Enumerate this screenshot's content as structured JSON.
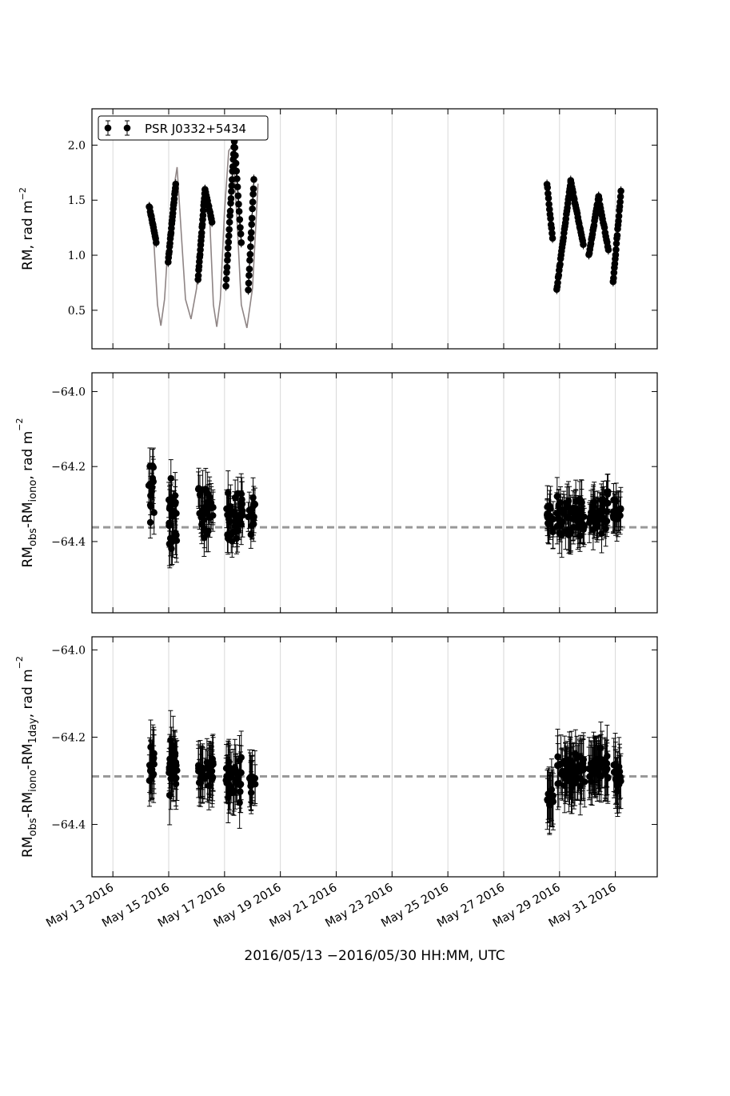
{
  "chart_data": [
    {
      "type": "scatter",
      "panel": "top",
      "ylabel": "RM, rad m",
      "ylabel_sup": "−2",
      "ylim": [
        0.15,
        2.33
      ],
      "yticks": [
        0.5,
        1.0,
        1.5,
        2.0
      ],
      "ytick_labels": [
        "0.5",
        "1.0",
        "1.5",
        "2.0"
      ],
      "grid": "vertical",
      "legend": {
        "label": "PSR J0332+5434",
        "position": "top-left"
      },
      "model_line": {
        "name": "ionospheric model",
        "color": "#8f8585",
        "x": [
          14.3,
          14.45,
          14.6,
          14.72,
          14.85,
          15.0,
          15.15,
          15.3,
          15.45,
          15.6,
          15.8,
          16.0,
          16.15,
          16.3,
          16.45,
          16.6,
          16.72,
          16.85,
          17.0,
          17.15,
          17.3,
          17.45,
          17.6,
          17.8,
          18.0,
          18.2
        ],
        "y": [
          1.42,
          1.2,
          0.55,
          0.36,
          0.6,
          1.2,
          1.55,
          1.8,
          1.2,
          0.6,
          0.42,
          0.7,
          1.3,
          1.6,
          1.45,
          0.55,
          0.35,
          0.6,
          1.4,
          1.95,
          2.0,
          1.3,
          0.55,
          0.34,
          0.7,
          1.65
        ]
      },
      "segments": [
        {
          "x0": 14.3,
          "x1": 14.55,
          "y0": 1.45,
          "y1": 1.12,
          "n": 14
        },
        {
          "x0": 14.98,
          "x1": 15.25,
          "y0": 0.94,
          "y1": 1.65,
          "n": 22
        },
        {
          "x0": 16.05,
          "x1": 16.3,
          "y0": 0.78,
          "y1": 1.6,
          "n": 22
        },
        {
          "x0": 16.3,
          "x1": 16.55,
          "y0": 1.6,
          "y1": 1.3,
          "n": 12
        },
        {
          "x0": 17.05,
          "x1": 17.35,
          "y0": 0.72,
          "y1": 2.04,
          "n": 24
        },
        {
          "x0": 17.35,
          "x1": 17.6,
          "y0": 2.04,
          "y1": 1.12,
          "n": 14
        },
        {
          "x0": 17.85,
          "x1": 18.05,
          "y0": 0.68,
          "y1": 1.68,
          "n": 16
        },
        {
          "x0": 28.55,
          "x1": 28.75,
          "y0": 1.65,
          "y1": 1.15,
          "n": 12
        },
        {
          "x0": 28.9,
          "x1": 29.4,
          "y0": 0.69,
          "y1": 1.67,
          "n": 30
        },
        {
          "x0": 29.4,
          "x1": 29.85,
          "y0": 1.67,
          "y1": 1.1,
          "n": 22
        },
        {
          "x0": 30.05,
          "x1": 30.4,
          "y0": 1.0,
          "y1": 1.53,
          "n": 20
        },
        {
          "x0": 30.4,
          "x1": 30.75,
          "y0": 1.53,
          "y1": 1.05,
          "n": 16
        },
        {
          "x0": 30.92,
          "x1": 31.2,
          "y0": 0.75,
          "y1": 1.58,
          "n": 20
        }
      ]
    },
    {
      "type": "scatter",
      "panel": "middle",
      "ylabel": "RM",
      "ylabel_parts": [
        "obs",
        "-RM",
        "iono",
        ", rad m",
        "−2"
      ],
      "ylim": [
        -64.59,
        -63.95
      ],
      "yticks": [
        -64.0,
        -64.2,
        -64.4
      ],
      "ytick_labels": [
        "−64.0",
        "−64.2",
        "−64.4"
      ],
      "mean_line": -64.362,
      "grid": "vertical",
      "clusters": [
        {
          "x0": 14.28,
          "x1": 14.48,
          "center": -64.27,
          "spread": 0.11,
          "err": 0.05,
          "n": 16
        },
        {
          "x0": 15.0,
          "x1": 15.3,
          "center": -64.35,
          "spread": 0.14,
          "err": 0.055,
          "n": 26
        },
        {
          "x0": 16.05,
          "x1": 16.6,
          "center": -64.32,
          "spread": 0.09,
          "err": 0.05,
          "n": 36
        },
        {
          "x0": 17.05,
          "x1": 17.65,
          "center": -64.33,
          "spread": 0.11,
          "err": 0.05,
          "n": 40
        },
        {
          "x0": 17.85,
          "x1": 18.1,
          "center": -64.33,
          "spread": 0.06,
          "err": 0.045,
          "n": 14
        },
        {
          "x0": 28.55,
          "x1": 28.8,
          "center": -64.34,
          "spread": 0.06,
          "err": 0.05,
          "n": 14
        },
        {
          "x0": 28.9,
          "x1": 29.9,
          "center": -64.34,
          "spread": 0.08,
          "err": 0.05,
          "n": 60
        },
        {
          "x0": 30.05,
          "x1": 30.75,
          "center": -64.32,
          "spread": 0.07,
          "err": 0.05,
          "n": 44
        },
        {
          "x0": 30.92,
          "x1": 31.2,
          "center": -64.33,
          "spread": 0.06,
          "err": 0.05,
          "n": 18
        }
      ]
    },
    {
      "type": "scatter",
      "panel": "bottom",
      "ylabel": "RM",
      "ylabel_parts": [
        "obs",
        "-RM",
        "iono",
        "-RM",
        "1day",
        ", rad m",
        "−2"
      ],
      "ylim": [
        -64.52,
        -63.97
      ],
      "yticks": [
        -64.0,
        -64.2,
        -64.4
      ],
      "ytick_labels": [
        "−64.0",
        "−64.2",
        "−64.4"
      ],
      "mean_line": -64.29,
      "grid": "vertical",
      "clusters": [
        {
          "x0": 14.28,
          "x1": 14.48,
          "center": -64.27,
          "spread": 0.07,
          "err": 0.06,
          "n": 16
        },
        {
          "x0": 15.0,
          "x1": 15.3,
          "center": -64.28,
          "spread": 0.09,
          "err": 0.06,
          "n": 26
        },
        {
          "x0": 16.05,
          "x1": 16.6,
          "center": -64.28,
          "spread": 0.05,
          "err": 0.055,
          "n": 36
        },
        {
          "x0": 17.05,
          "x1": 17.65,
          "center": -64.29,
          "spread": 0.07,
          "err": 0.055,
          "n": 40
        },
        {
          "x0": 17.85,
          "x1": 18.1,
          "center": -64.3,
          "spread": 0.04,
          "err": 0.055,
          "n": 14
        },
        {
          "x0": 28.55,
          "x1": 28.8,
          "center": -64.34,
          "spread": 0.04,
          "err": 0.06,
          "n": 14
        },
        {
          "x0": 28.9,
          "x1": 29.9,
          "center": -64.28,
          "spread": 0.05,
          "err": 0.06,
          "n": 60
        },
        {
          "x0": 30.05,
          "x1": 30.75,
          "center": -64.27,
          "spread": 0.05,
          "err": 0.06,
          "n": 44
        },
        {
          "x0": 30.92,
          "x1": 31.2,
          "center": -64.29,
          "spread": 0.04,
          "err": 0.06,
          "n": 18
        }
      ]
    }
  ],
  "x_axis": {
    "unit": "day of May 2016",
    "xlim": [
      12.25,
      32.5
    ],
    "grid_days": [
      13,
      15,
      17,
      19,
      21,
      23,
      25,
      27,
      29,
      31
    ],
    "tick_labels": [
      "May 13 2016",
      "May 15 2016",
      "May 17 2016",
      "May 19 2016",
      "May 21 2016",
      "May 23 2016",
      "May 25 2016",
      "May 27 2016",
      "May 29 2016",
      "May 31 2016"
    ],
    "xlabel_parts": [
      "2016/05/13 ",
      "−",
      "2016/05/30 HH:MM, UTC"
    ]
  },
  "colors": {
    "marker": "#000000",
    "model": "#8f8585",
    "mean": "#999999",
    "grid": "#d4d4d4"
  }
}
